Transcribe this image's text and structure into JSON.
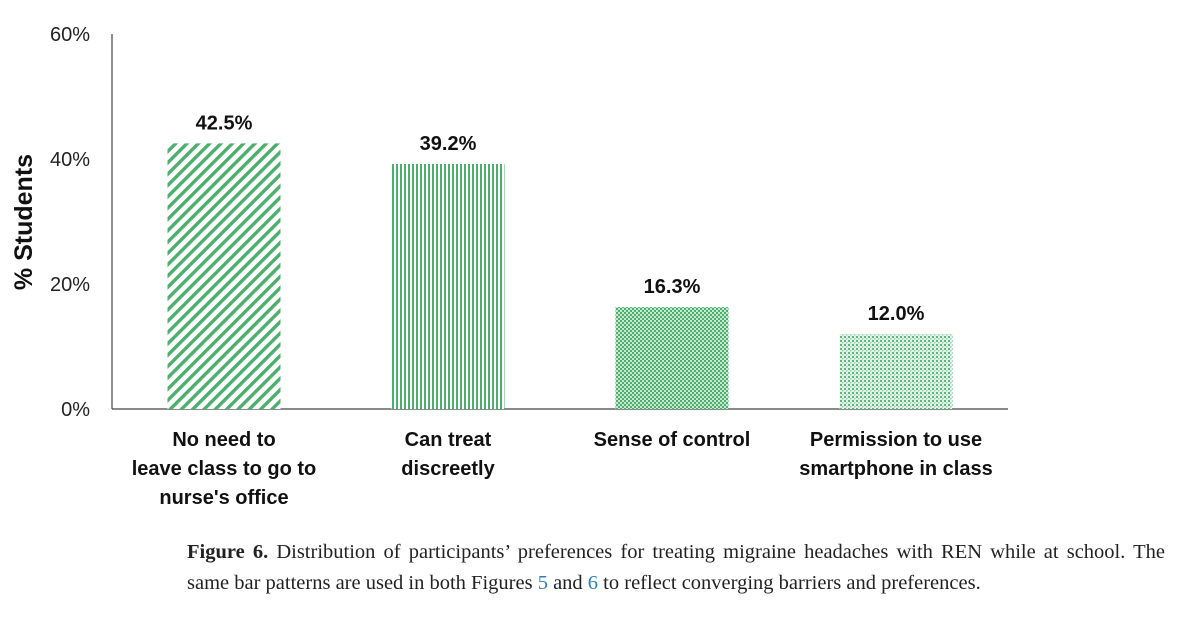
{
  "chart_data": {
    "type": "bar",
    "categories": [
      [
        "No need to",
        "leave class to go to",
        "nurse's office"
      ],
      [
        "Can treat",
        "discreetly"
      ],
      [
        "Sense of control"
      ],
      [
        "Permission to use",
        "smartphone in class"
      ]
    ],
    "values": [
      42.5,
      39.2,
      16.3,
      12.0
    ],
    "value_labels": [
      "42.5%",
      "39.2%",
      "16.3%",
      "12.0%"
    ],
    "patterns": [
      "diagonal-stripes",
      "vertical-stripes",
      "dots",
      "dots-light"
    ],
    "bar_color": "#4caf6e",
    "ylabel": "% Students",
    "ylim": [
      0,
      60
    ],
    "yticks": [
      0,
      20,
      40,
      60
    ],
    "ytick_labels": [
      "0%",
      "20%",
      "40%",
      "60%"
    ],
    "grid": false,
    "legend": "none"
  },
  "caption": {
    "label": "Figure 6.",
    "text_before": " Distribution of participants’ preferences for treating migraine headaches with REN while at school.  The same bar patterns are used in both Figures ",
    "ref1": "5",
    "text_and": " and ",
    "ref2": "6",
    "text_after": " to reflect converging barriers and preferences."
  }
}
